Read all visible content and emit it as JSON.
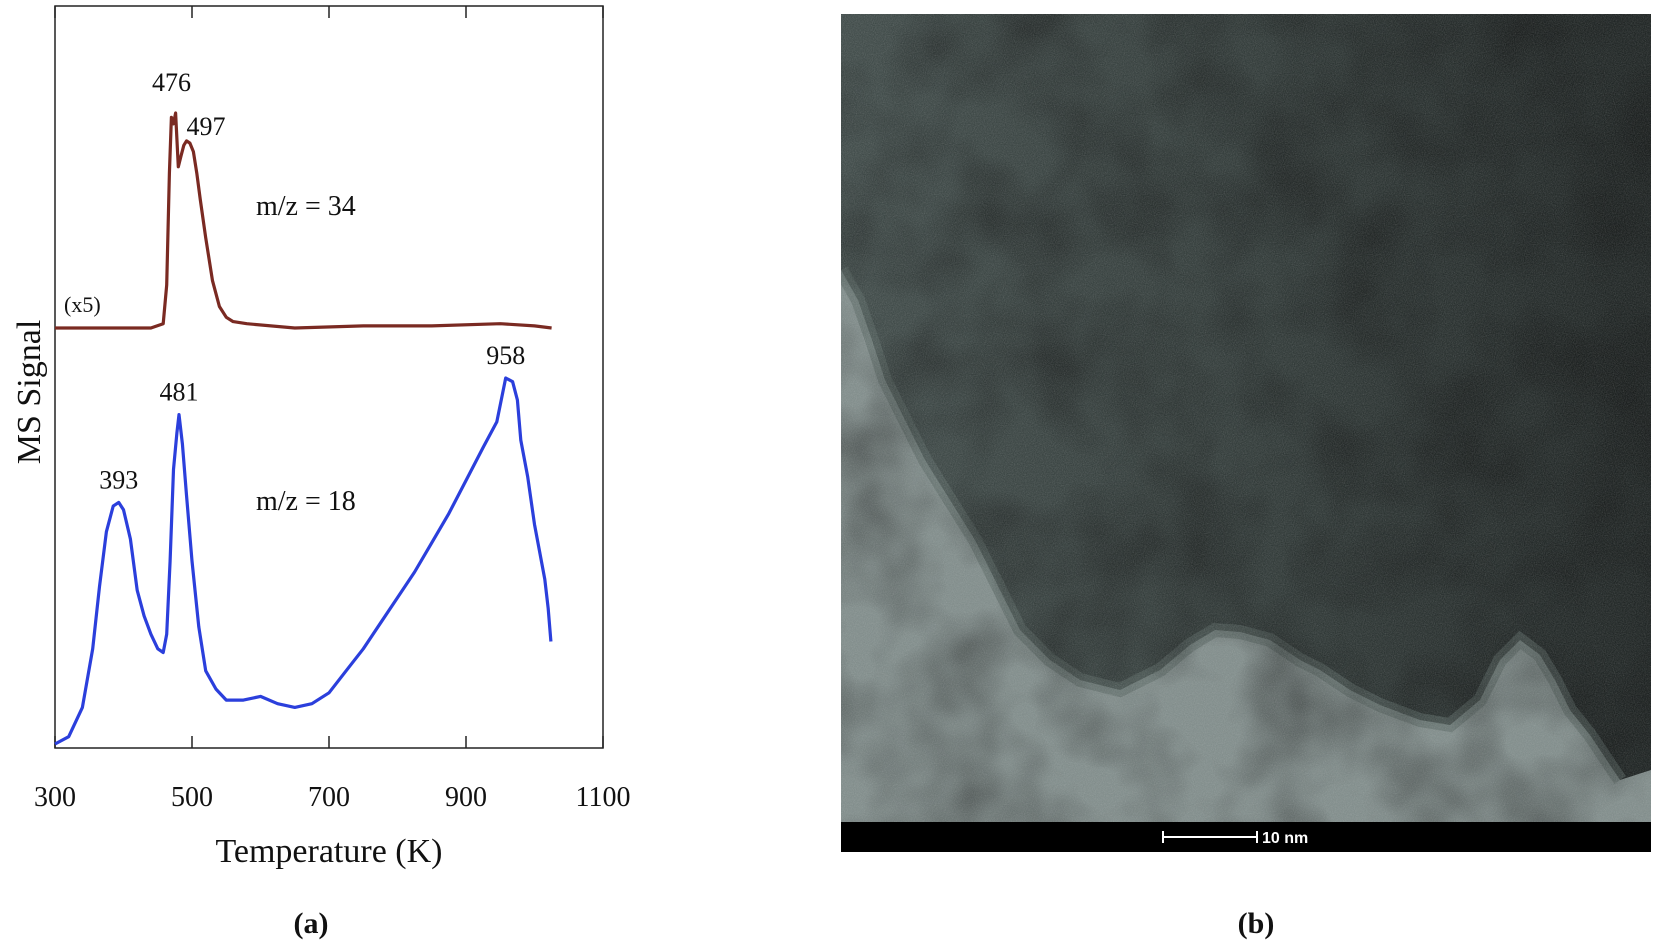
{
  "chart_data": {
    "type": "line",
    "xlabel": "Temperature (K)",
    "ylabel": "MS Signal",
    "xlim": [
      300,
      1100
    ],
    "xticks": [
      "300",
      "500",
      "700",
      "900",
      "1100"
    ],
    "grid": false,
    "series": [
      {
        "name": "m/z = 34",
        "color": "#7a2a22",
        "note": "(x5)",
        "x": [
          300,
          350,
          400,
          440,
          458,
          463,
          467,
          470,
          473,
          476,
          480,
          484,
          488,
          492,
          497,
          502,
          507,
          512,
          520,
          530,
          540,
          550,
          560,
          580,
          650,
          750,
          850,
          950,
          1000,
          1025
        ],
        "y": [
          0.0,
          0.0,
          0.0,
          0.0,
          0.02,
          0.2,
          0.72,
          0.98,
          0.95,
          1.0,
          0.75,
          0.8,
          0.85,
          0.87,
          0.86,
          0.82,
          0.72,
          0.6,
          0.42,
          0.22,
          0.1,
          0.05,
          0.03,
          0.02,
          0.0,
          0.01,
          0.01,
          0.02,
          0.01,
          0.0
        ],
        "peaks": [
          476,
          497
        ]
      },
      {
        "name": "m/z = 18",
        "color": "#2b3fdc",
        "x": [
          300,
          320,
          340,
          355,
          365,
          375,
          385,
          393,
          400,
          410,
          420,
          430,
          440,
          450,
          458,
          463,
          468,
          473,
          478,
          481,
          486,
          492,
          500,
          510,
          520,
          535,
          550,
          575,
          600,
          625,
          650,
          675,
          700,
          725,
          750,
          775,
          800,
          825,
          850,
          875,
          900,
          925,
          945,
          958,
          968,
          975,
          980,
          990,
          1000,
          1008,
          1015,
          1020,
          1024
        ],
        "y": [
          0.0,
          0.02,
          0.1,
          0.26,
          0.43,
          0.58,
          0.65,
          0.66,
          0.64,
          0.56,
          0.42,
          0.35,
          0.3,
          0.26,
          0.25,
          0.3,
          0.5,
          0.75,
          0.85,
          0.9,
          0.82,
          0.68,
          0.5,
          0.32,
          0.2,
          0.15,
          0.12,
          0.12,
          0.13,
          0.11,
          0.1,
          0.11,
          0.14,
          0.2,
          0.26,
          0.33,
          0.4,
          0.47,
          0.55,
          0.63,
          0.72,
          0.81,
          0.88,
          1.0,
          0.99,
          0.94,
          0.83,
          0.73,
          0.6,
          0.52,
          0.45,
          0.37,
          0.28
        ],
        "peaks": [
          393,
          481,
          958
        ]
      }
    ]
  },
  "image_panel": {
    "scale_bar_label": "10 nm"
  },
  "panel_labels": {
    "a": "(a)",
    "b": "(b)"
  }
}
